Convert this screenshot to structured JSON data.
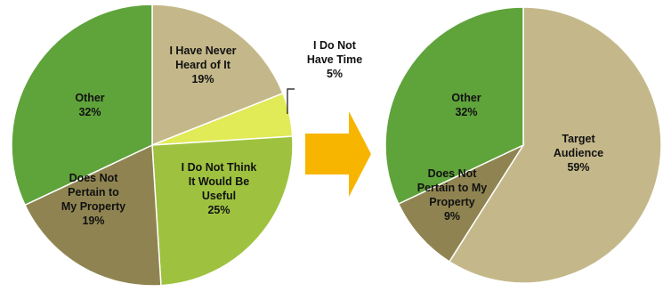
{
  "chart_data": [
    {
      "type": "pie",
      "slices": [
        {
          "label": [
            "I Have Never",
            "Heard of It"
          ],
          "value": 19,
          "display": "19%",
          "color": "#c4b88a"
        },
        {
          "label": [
            "I Do Not",
            "Have Time"
          ],
          "value": 5,
          "display": "5%",
          "color": "#e1ea57",
          "callout": true
        },
        {
          "label": [
            "I Do Not Think",
            "It Would Be",
            "Useful"
          ],
          "value": 25,
          "display": "25%",
          "color": "#9ec23f"
        },
        {
          "label": [
            "Does Not",
            "Pertain to",
            "My Property"
          ],
          "value": 19,
          "display": "19%",
          "color": "#8f8451"
        },
        {
          "label": [
            "Other"
          ],
          "value": 32,
          "display": "32%",
          "color": "#5fa33b"
        }
      ]
    },
    {
      "type": "pie",
      "slices": [
        {
          "label": [
            "Target",
            "Audience"
          ],
          "value": 59,
          "display": "59%",
          "color": "#c4b88a"
        },
        {
          "label": [
            "Does Not",
            "Pertain to My",
            "Property"
          ],
          "value": 9,
          "display": "9%",
          "color": "#8f8451"
        },
        {
          "label": [
            "Other"
          ],
          "value": 32,
          "display": "32%",
          "color": "#5fa33b"
        }
      ]
    }
  ],
  "arrow_color": "#f7b500"
}
